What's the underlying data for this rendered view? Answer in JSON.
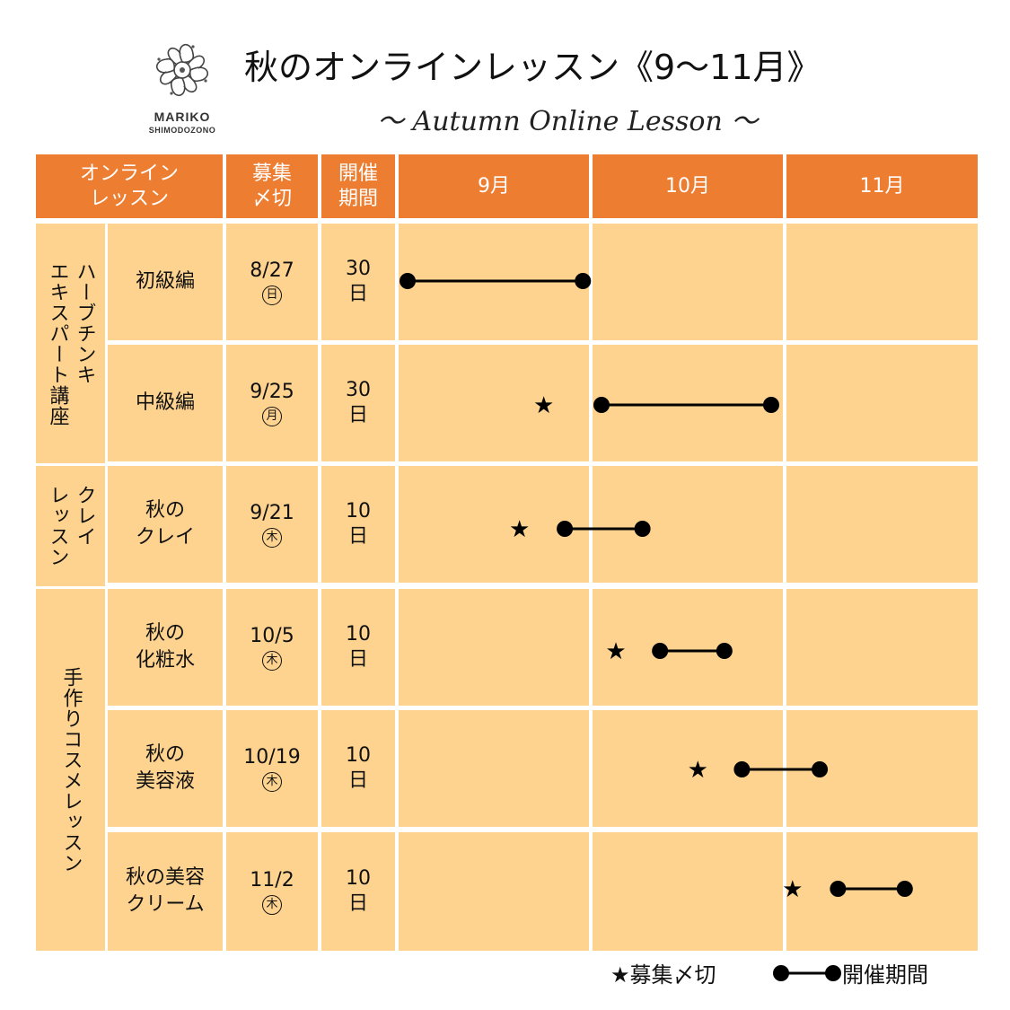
{
  "brand": {
    "name": "MARIKO",
    "sub": "SHIMODOZONO"
  },
  "title": "秋のオンラインレッスン《9〜11月》",
  "subtitle": "〜 Autumn Online Lesson 〜",
  "header": {
    "lesson_col": "オンライン\nレッスン",
    "deadline_col": "募集\n〆切",
    "period_col": "開催\n期間",
    "months": [
      "9月",
      "10月",
      "11月"
    ]
  },
  "categories": [
    {
      "label": "ハーブチンキ\nエキスパート講座"
    },
    {
      "label": "クレイ\nレッスン"
    },
    {
      "label": "手作りコスメレッスン"
    }
  ],
  "rows": [
    {
      "name": "初級編",
      "deadline": "8/27",
      "weekday": "日",
      "days_num": "30",
      "days_unit": "日"
    },
    {
      "name": "中級編",
      "deadline": "9/25",
      "weekday": "月",
      "days_num": "30",
      "days_unit": "日"
    },
    {
      "name": "秋の\nクレイ",
      "deadline": "9/21",
      "weekday": "木",
      "days_num": "10",
      "days_unit": "日"
    },
    {
      "name": "秋の\n化粧水",
      "deadline": "10/5",
      "weekday": "木",
      "days_num": "10",
      "days_unit": "日"
    },
    {
      "name": "秋の\n美容液",
      "deadline": "10/19",
      "weekday": "木",
      "days_num": "10",
      "days_unit": "日"
    },
    {
      "name": "秋の美容\nクリーム",
      "deadline": "11/2",
      "weekday": "木",
      "days_num": "10",
      "days_unit": "日"
    }
  ],
  "chart_data": {
    "type": "table",
    "x_range": [
      "9/1",
      "11/30"
    ],
    "bars": [
      {
        "start": "9/1",
        "end": "9/30"
      },
      {
        "star": "9/25",
        "start": "10/1",
        "end": "10/30"
      },
      {
        "star": "9/21",
        "start": "9/27",
        "end": "10/8"
      },
      {
        "star": "10/5",
        "start": "10/11",
        "end": "10/22"
      },
      {
        "star": "10/19",
        "start": "10/25",
        "end": "11/5"
      },
      {
        "star": "11/2",
        "start": "11/8",
        "end": "11/19"
      }
    ]
  },
  "legend": {
    "star_label": "募集〆切",
    "period_label": "開催期間"
  },
  "colors": {
    "header": "#ED7D31",
    "body": "#FED38F"
  }
}
